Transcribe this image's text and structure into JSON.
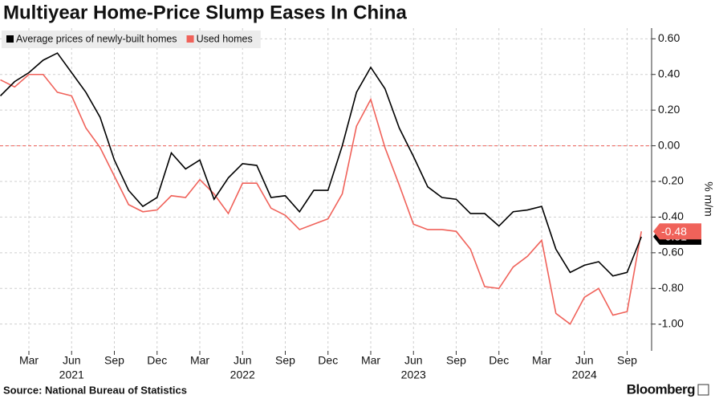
{
  "chart_data": {
    "type": "line",
    "title": "Multiyear Home-Price Slump Eases In China",
    "y_label": "% m/m",
    "source": "Source: National Bureau of Statistics",
    "brand": "Bloomberg",
    "x": [
      "2021-01",
      "2021-02",
      "2021-03",
      "2021-04",
      "2021-05",
      "2021-06",
      "2021-07",
      "2021-08",
      "2021-09",
      "2021-10",
      "2021-11",
      "2021-12",
      "2022-01",
      "2022-02",
      "2022-03",
      "2022-04",
      "2022-05",
      "2022-06",
      "2022-07",
      "2022-08",
      "2022-09",
      "2022-10",
      "2022-11",
      "2022-12",
      "2023-01",
      "2023-02",
      "2023-03",
      "2023-04",
      "2023-05",
      "2023-06",
      "2023-07",
      "2023-08",
      "2023-09",
      "2023-10",
      "2023-11",
      "2023-12",
      "2024-01",
      "2024-02",
      "2024-03",
      "2024-04",
      "2024-05",
      "2024-06",
      "2024-07",
      "2024-08",
      "2024-09",
      "2024-10"
    ],
    "series": [
      {
        "name": "Average prices of newly-built homes",
        "color": "#000000",
        "values": [
          0.28,
          0.36,
          0.41,
          0.48,
          0.52,
          0.41,
          0.3,
          0.16,
          -0.08,
          -0.25,
          -0.34,
          -0.29,
          -0.04,
          -0.13,
          -0.08,
          -0.3,
          -0.18,
          -0.1,
          -0.11,
          -0.29,
          -0.28,
          -0.37,
          -0.25,
          -0.25,
          0.0,
          0.3,
          0.44,
          0.32,
          0.1,
          -0.06,
          -0.23,
          -0.29,
          -0.3,
          -0.38,
          -0.38,
          -0.45,
          -0.37,
          -0.36,
          -0.34,
          -0.58,
          -0.71,
          -0.67,
          -0.65,
          -0.73,
          -0.71,
          -0.51
        ]
      },
      {
        "name": "Used homes",
        "color": "#f0625a",
        "values": [
          0.37,
          0.33,
          0.4,
          0.4,
          0.3,
          0.28,
          0.1,
          -0.01,
          -0.17,
          -0.33,
          -0.37,
          -0.36,
          -0.28,
          -0.29,
          -0.19,
          -0.27,
          -0.38,
          -0.21,
          -0.21,
          -0.35,
          -0.39,
          -0.47,
          -0.44,
          -0.41,
          -0.27,
          0.11,
          0.26,
          -0.01,
          -0.22,
          -0.44,
          -0.47,
          -0.47,
          -0.48,
          -0.58,
          -0.79,
          -0.8,
          -0.68,
          -0.62,
          -0.53,
          -0.94,
          -1.0,
          -0.85,
          -0.8,
          -0.95,
          -0.93,
          -0.48
        ]
      }
    ],
    "ylim": [
      -1.15,
      0.66
    ],
    "yticks": [
      {
        "value": 0.6,
        "label": "0.60"
      },
      {
        "value": 0.4,
        "label": "0.40"
      },
      {
        "value": 0.2,
        "label": "0.20"
      },
      {
        "value": 0,
        "label": "0.00"
      },
      {
        "value": -0.2,
        "label": "-0.20"
      },
      {
        "value": -0.4,
        "label": "-0.40"
      },
      {
        "value": -0.6,
        "label": "-0.60"
      },
      {
        "value": -0.8,
        "label": "-0.80"
      },
      {
        "value": -1,
        "label": "-1.00"
      }
    ],
    "xticks": [
      {
        "value": "2021-03",
        "label": "Mar"
      },
      {
        "value": "2021-06",
        "label": "Jun"
      },
      {
        "value": "2021-09",
        "label": "Sep"
      },
      {
        "value": "2021-12",
        "label": "Dec"
      },
      {
        "value": "2022-03",
        "label": "Mar"
      },
      {
        "value": "2022-06",
        "label": "Jun"
      },
      {
        "value": "2022-09",
        "label": "Sep"
      },
      {
        "value": "2022-12",
        "label": "Dec"
      },
      {
        "value": "2023-03",
        "label": "Mar"
      },
      {
        "value": "2023-06",
        "label": "Jun"
      },
      {
        "value": "2023-09",
        "label": "Sep"
      },
      {
        "value": "2023-12",
        "label": "Dec"
      },
      {
        "value": "2024-03",
        "label": "Mar"
      },
      {
        "value": "2024-06",
        "label": "Jun"
      },
      {
        "value": "2024-09",
        "label": "Sep"
      }
    ],
    "year_labels": [
      {
        "value": "2021-06",
        "label": "2021"
      },
      {
        "value": "2022-06",
        "label": "2022"
      },
      {
        "value": "2023-06",
        "label": "2023"
      },
      {
        "value": "2024-06",
        "label": "2024"
      }
    ],
    "grid": true,
    "zero_line": true,
    "legend": "top-left"
  }
}
